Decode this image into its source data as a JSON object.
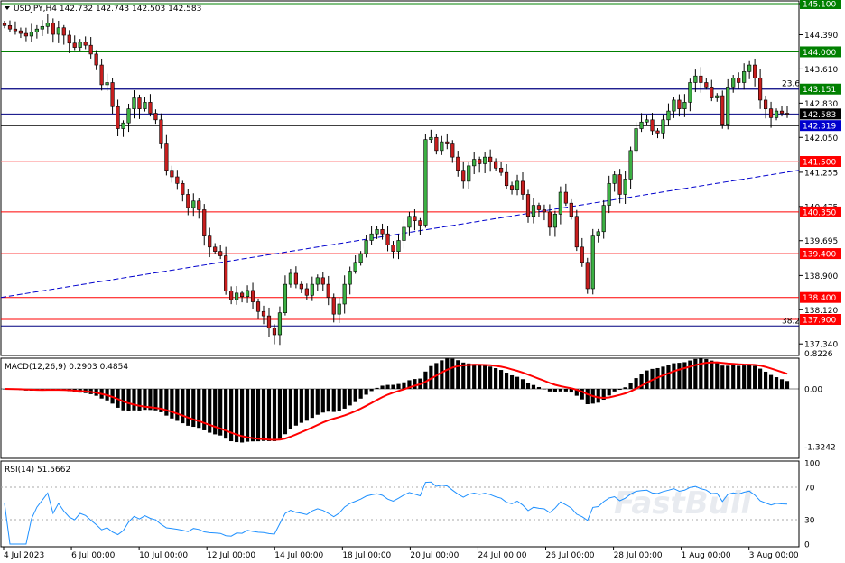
{
  "header": {
    "symbol": "USDJPY,H4",
    "open": "142.732",
    "high": "142.743",
    "low": "142.503",
    "close": "142.583"
  },
  "watermark": "FastBull",
  "price_axis": {
    "ticks": [
      "145.100",
      "144.390",
      "143.610",
      "142.830",
      "142.050",
      "141.255",
      "140.475",
      "139.695",
      "138.900",
      "138.120",
      "137.340"
    ]
  },
  "levels": [
    {
      "price": 145.1,
      "label": "145.100",
      "color": "#008000",
      "tag_fill": "#008000",
      "tag_text": "#ffffff"
    },
    {
      "price": 144.0,
      "label": "144.000",
      "color": "#008000",
      "tag_fill": "#008000",
      "tag_text": "#ffffff"
    },
    {
      "price": 143.151,
      "label": "143.151",
      "color": "#000080",
      "tag_fill": "#008000",
      "tag_text": "#ffffff"
    },
    {
      "price": 142.583,
      "label": "142.583",
      "color": "#000080",
      "tag_fill": "#000000",
      "tag_text": "#ffffff"
    },
    {
      "price": 142.319,
      "label": "142.319",
      "color": "#000000",
      "tag_fill": "#0000cd",
      "tag_text": "#ffffff"
    },
    {
      "price": 141.5,
      "label": "141.500",
      "color": "#ff8080",
      "tag_fill": "#ff0000",
      "tag_text": "#ffffff"
    },
    {
      "price": 140.35,
      "label": "140.350",
      "color": "#ff0000",
      "tag_fill": "#ff0000",
      "tag_text": "#ffffff"
    },
    {
      "price": 139.4,
      "label": "139.400",
      "color": "#ff0000",
      "tag_fill": "#ff0000",
      "tag_text": "#ffffff"
    },
    {
      "price": 138.4,
      "label": "138.400",
      "color": "#ff0000",
      "tag_fill": "#ff0000",
      "tag_text": "#ffffff"
    },
    {
      "price": 137.9,
      "label": "137.900",
      "color": "#ff0000",
      "tag_fill": "#ff0000",
      "tag_text": "#ffffff"
    }
  ],
  "fib_lines": [
    {
      "price": 143.151,
      "label": "23.6"
    },
    {
      "price": 137.75,
      "label": "38.2"
    }
  ],
  "trendline": {
    "start_price": 138.4,
    "end_price": 141.3,
    "color": "#0000cd"
  },
  "macd": {
    "label": "MACD(12,26,9) 0.2903 0.4854",
    "ticks": [
      "0.8226",
      "0.00",
      "-1.3242"
    ],
    "max": 0.8226,
    "min": -1.3242
  },
  "rsi": {
    "label": "RSI(14) 51.5662",
    "ticks": [
      "100",
      "70",
      "30",
      "0"
    ],
    "color": "#1e90ff"
  },
  "chart_data": {
    "type": "candlestick",
    "symbol": "USDJPY",
    "timeframe": "H4",
    "ylim": [
      137.0,
      145.3
    ],
    "x_ticks": [
      "4 Jul 2023",
      "6 Jul 00:00",
      "10 Jul 00:00",
      "12 Jul 00:00",
      "14 Jul 00:00",
      "18 Jul 00:00",
      "20 Jul 00:00",
      "24 Jul 00:00",
      "26 Jul 00:00",
      "28 Jul 00:00",
      "1 Aug 00:00",
      "3 Aug 00:00"
    ],
    "closes": [
      144.6,
      144.52,
      144.48,
      144.42,
      144.36,
      144.45,
      144.52,
      144.58,
      144.66,
      144.4,
      144.55,
      144.38,
      144.2,
      144.1,
      144.22,
      144.15,
      143.95,
      143.7,
      143.25,
      143.3,
      142.75,
      142.25,
      142.38,
      142.7,
      142.95,
      142.7,
      142.85,
      142.6,
      142.45,
      141.9,
      141.3,
      141.15,
      141.0,
      140.75,
      140.45,
      140.6,
      140.4,
      139.8,
      139.55,
      139.45,
      139.35,
      138.55,
      138.35,
      138.5,
      138.42,
      138.56,
      138.3,
      138.08,
      137.98,
      137.7,
      137.55,
      138.05,
      138.7,
      138.95,
      138.7,
      138.6,
      138.45,
      138.7,
      138.85,
      138.7,
      138.4,
      138.02,
      138.25,
      138.7,
      139.0,
      139.2,
      139.4,
      139.7,
      139.85,
      139.95,
      139.85,
      139.6,
      139.45,
      139.7,
      140.0,
      140.25,
      140.15,
      140.05,
      142.0,
      142.05,
      141.75,
      141.95,
      141.9,
      141.6,
      141.3,
      141.05,
      141.4,
      141.55,
      141.45,
      141.6,
      141.5,
      141.35,
      141.25,
      140.95,
      140.85,
      141.05,
      140.75,
      140.25,
      140.5,
      140.4,
      140.35,
      140.0,
      140.3,
      140.8,
      140.55,
      140.25,
      139.55,
      139.2,
      138.6,
      139.8,
      139.9,
      140.5,
      141.0,
      141.2,
      140.75,
      141.1,
      141.75,
      142.25,
      142.4,
      142.45,
      142.2,
      142.15,
      142.45,
      142.65,
      142.9,
      142.7,
      142.85,
      143.3,
      143.45,
      143.3,
      143.2,
      142.95,
      143.0,
      142.35,
      143.2,
      143.4,
      143.3,
      143.55,
      143.7,
      143.4,
      142.9,
      142.7,
      142.5,
      142.65,
      142.6,
      142.58
    ],
    "series": [
      {
        "name": "MACD(12,26,9)",
        "type": "histogram",
        "last": 0.2903
      },
      {
        "name": "Signal",
        "type": "line",
        "color": "#ff0000",
        "last": 0.4854
      },
      {
        "name": "RSI(14)",
        "type": "line",
        "last": 51.5662,
        "levels": [
          70,
          30
        ]
      }
    ]
  }
}
